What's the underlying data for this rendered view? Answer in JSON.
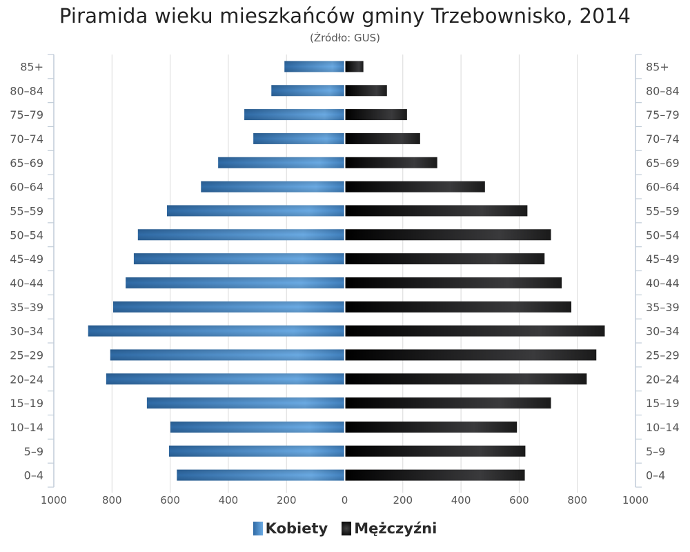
{
  "title": "Piramida wieku mieszkańców gminy Trzebownisko, 2014",
  "subtitle": "(Źródło: GUS)",
  "legend": {
    "women": "Kobiety",
    "men": "Mężczyźni"
  },
  "colors": {
    "women_dark": "#2f6aa5",
    "women_light": "#6aaae3",
    "men_dark": "#000000",
    "men_light": "#3a3a3c",
    "grid": "#d9d9d9",
    "axis": "#c0ccd8"
  },
  "chart_data": {
    "type": "bar",
    "orientation": "horizontal-pyramid",
    "title": "Piramida wieku mieszkańców gminy Trzebownisko, 2014",
    "subtitle": "(Źródło: GUS)",
    "categories": [
      "85+",
      "80-84",
      "75-79",
      "70-74",
      "65-69",
      "60-64",
      "55-59",
      "50-54",
      "45-49",
      "40-44",
      "35-39",
      "30-34",
      "25-29",
      "20-24",
      "15-19",
      "10-14",
      "5-9",
      "0-4"
    ],
    "series": [
      {
        "name": "Kobiety",
        "side": "left",
        "values": [
          207,
          252,
          345,
          314,
          435,
          494,
          611,
          711,
          725,
          753,
          796,
          882,
          806,
          820,
          680,
          599,
          604,
          577
        ]
      },
      {
        "name": "Mężczyźni",
        "side": "right",
        "values": [
          62,
          143,
          212,
          257,
          316,
          480,
          626,
          707,
          685,
          744,
          777,
          892,
          863,
          830,
          707,
          590,
          619,
          617
        ]
      }
    ],
    "xlabel": "",
    "ylabel": "",
    "x_ticks": [
      "1000",
      "800",
      "600",
      "400",
      "200",
      "0",
      "200",
      "400",
      "600",
      "800",
      "1000"
    ],
    "xlim": [
      -1000,
      1000
    ],
    "grid": true,
    "legend_position": "bottom"
  }
}
